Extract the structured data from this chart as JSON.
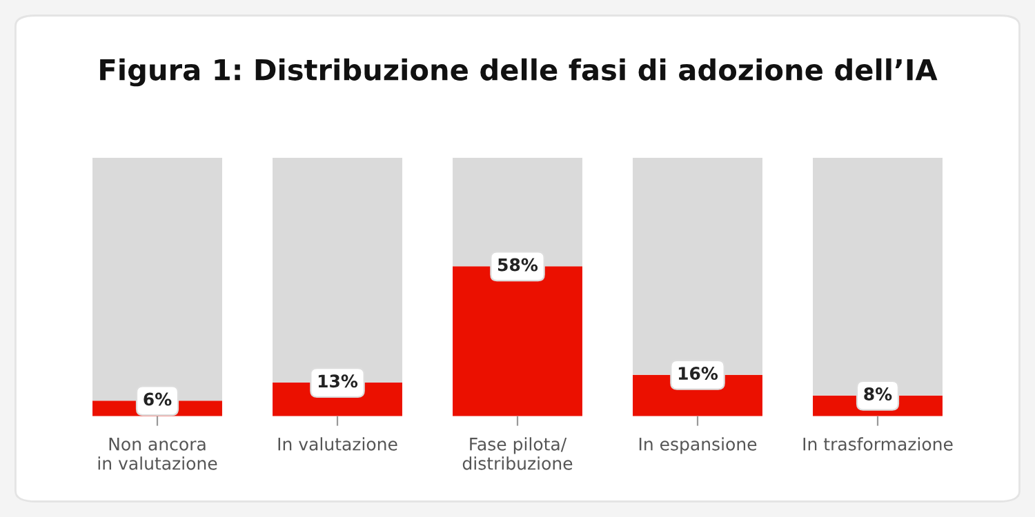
{
  "chart_data": {
    "type": "bar",
    "title": "Figura 1: Distribuzione delle fasi di adozione dell’IA",
    "categories": [
      "Non ancora\nin valutazione",
      "In valutazione",
      "Fase pilota/\ndistribuzione",
      "In espansione",
      "In trasformazione"
    ],
    "series": [
      {
        "color": "#eb1000",
        "values": [
          6,
          13,
          58,
          16,
          8
        ],
        "value_labels": [
          "6%",
          "13%",
          "58%",
          "16%",
          "8%"
        ]
      },
      {
        "color": "#dadada",
        "values": [
          94,
          87,
          42,
          84,
          92
        ]
      }
    ],
    "stacked": true,
    "ylim": [
      0,
      100
    ],
    "legend": false
  }
}
